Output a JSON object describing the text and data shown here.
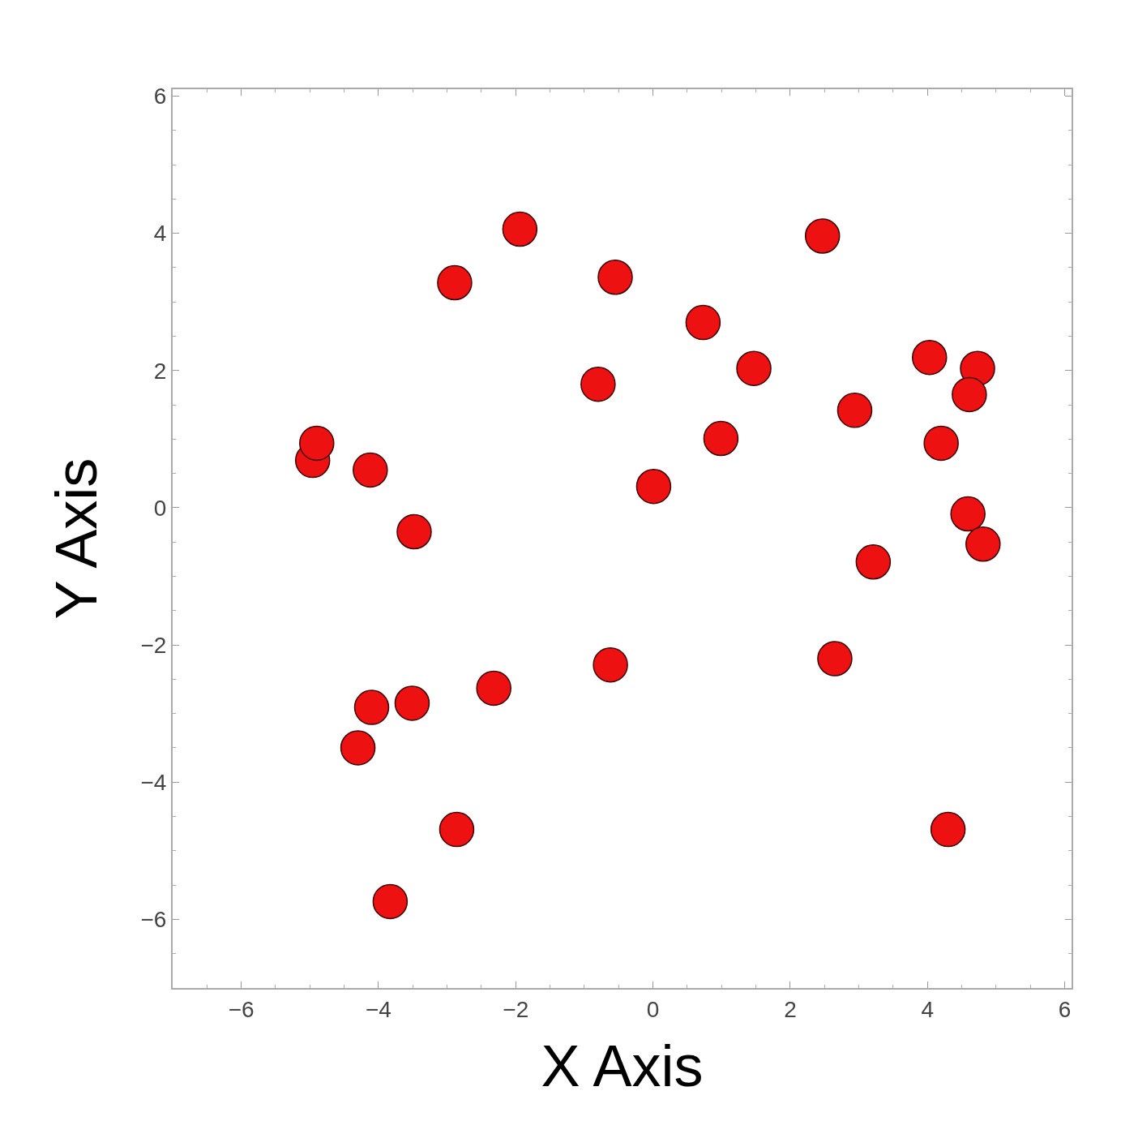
{
  "chart_data": {
    "type": "scatter",
    "xlabel": "X Axis",
    "ylabel": "Y Axis",
    "x": [
      -1.94,
      -2.89,
      -0.55,
      2.47,
      0.73,
      -0.8,
      1.47,
      4.03,
      4.73,
      4.61,
      2.94,
      0.99,
      4.2,
      0.01,
      -4.96,
      -4.9,
      -4.12,
      -3.48,
      4.59,
      4.81,
      3.21,
      2.65,
      -0.62,
      -2.32,
      -3.51,
      -4.1,
      -4.3,
      -2.86,
      4.3,
      -3.83
    ],
    "series": [
      {
        "color": "#ee1111",
        "values": [
          4.06,
          3.28,
          3.36,
          3.96,
          2.7,
          1.8,
          2.03,
          2.19,
          2.03,
          1.65,
          1.42,
          1.01,
          0.94,
          0.31,
          0.69,
          0.94,
          0.55,
          -0.35,
          -0.09,
          -0.53,
          -0.79,
          -2.2,
          -2.29,
          -2.63,
          -2.85,
          -2.91,
          -3.5,
          -4.69,
          -4.69,
          -5.74
        ]
      }
    ],
    "xlim": [
      -7,
      6.1
    ],
    "ylim": [
      -7,
      6.1
    ],
    "xticks": [
      -6,
      -4,
      -2,
      0,
      2,
      4,
      6
    ],
    "yticks": [
      -6,
      -4,
      -2,
      0,
      2,
      4,
      6
    ],
    "marker": "circle"
  }
}
